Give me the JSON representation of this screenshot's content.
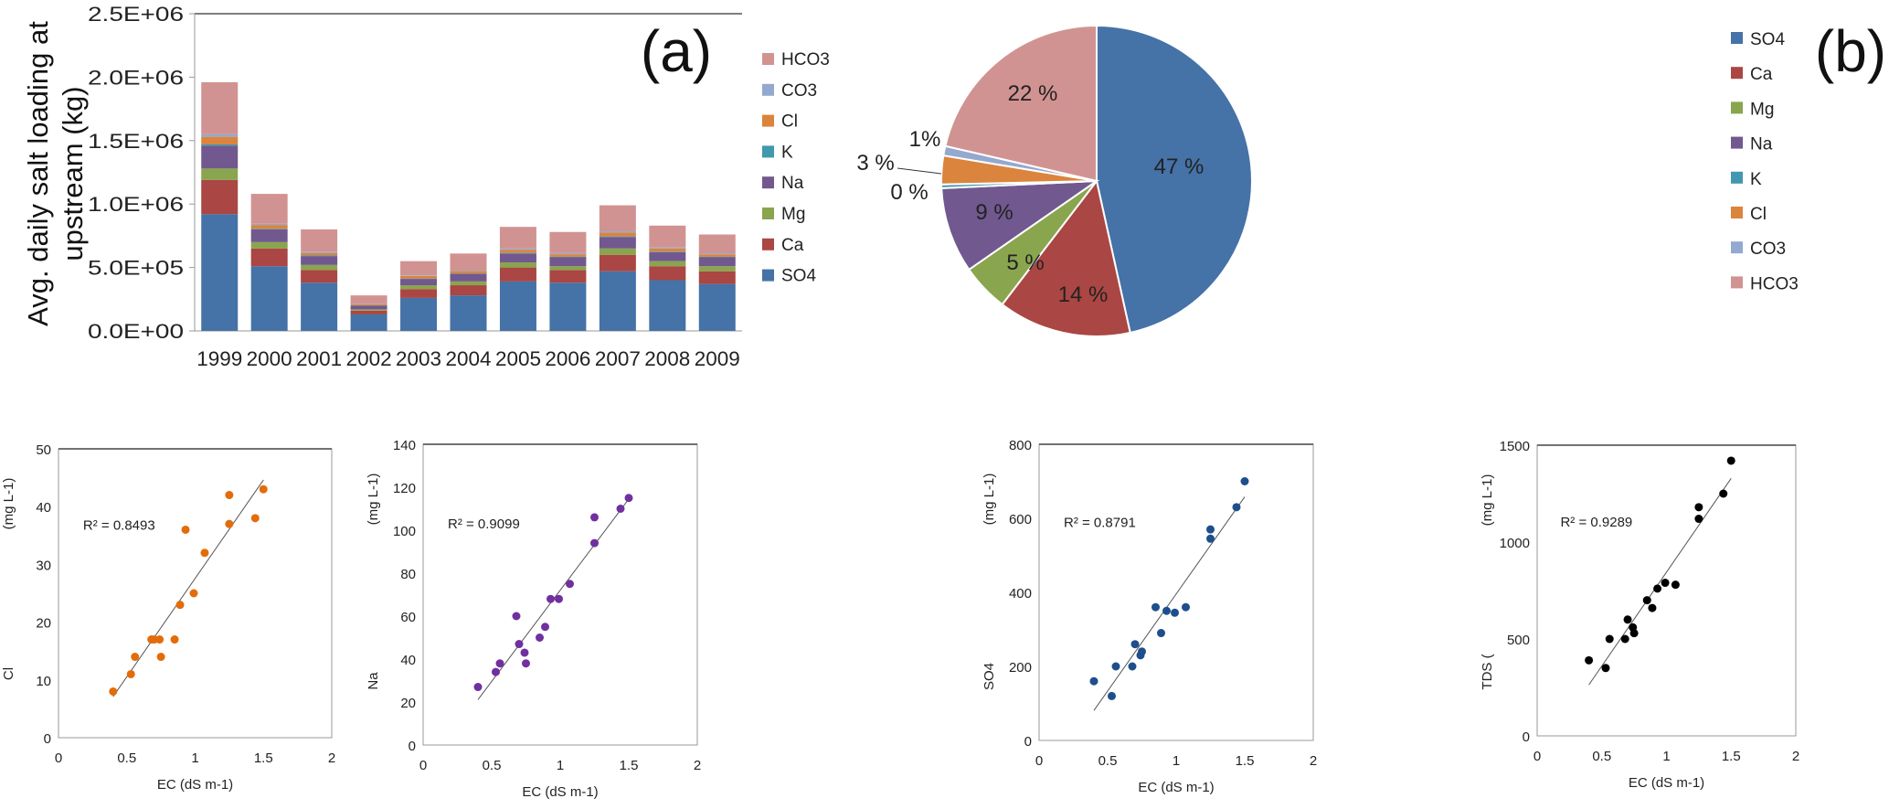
{
  "chart_data": [
    {
      "type": "bar",
      "stacked": true,
      "panel_label": "(a)",
      "ylabel": "Avg. daily salt loading at upstream (kg)",
      "xlabel": "",
      "ylim": [
        0,
        2500000
      ],
      "yticks": [
        "0.0E+00",
        "5.0E+05",
        "1.0E+06",
        "1.5E+06",
        "2.0E+06",
        "2.5E+06"
      ],
      "categories": [
        "1999",
        "2000",
        "2001",
        "2002",
        "2003",
        "2004",
        "2005",
        "2006",
        "2007",
        "2008",
        "2009"
      ],
      "legend_position": "right",
      "series": [
        {
          "name": "SO4",
          "color": "#4572a7",
          "values": [
            920000,
            510000,
            380000,
            130000,
            260000,
            280000,
            390000,
            380000,
            470000,
            400000,
            370000
          ]
        },
        {
          "name": "Ca",
          "color": "#aa4643",
          "values": [
            270000,
            140000,
            100000,
            30000,
            70000,
            80000,
            110000,
            100000,
            130000,
            110000,
            100000
          ]
        },
        {
          "name": "Mg",
          "color": "#89a54e",
          "values": [
            90000,
            50000,
            40000,
            10000,
            30000,
            30000,
            40000,
            30000,
            50000,
            40000,
            40000
          ]
        },
        {
          "name": "Na",
          "color": "#71588f",
          "values": [
            180000,
            100000,
            70000,
            30000,
            50000,
            60000,
            70000,
            70000,
            90000,
            70000,
            70000
          ]
        },
        {
          "name": "K",
          "color": "#4198af",
          "values": [
            10000,
            5000,
            5000,
            2000,
            3000,
            3000,
            5000,
            4000,
            5000,
            5000,
            4000
          ]
        },
        {
          "name": "Cl",
          "color": "#db843d",
          "values": [
            60000,
            30000,
            20000,
            10000,
            20000,
            20000,
            25000,
            20000,
            30000,
            25000,
            20000
          ]
        },
        {
          "name": "CO3",
          "color": "#93a9cf",
          "values": [
            20000,
            10000,
            10000,
            3000,
            5000,
            6000,
            10000,
            10000,
            10000,
            8000,
            8000
          ]
        },
        {
          "name": "HCO3",
          "color": "#d19392",
          "values": [
            410000,
            235000,
            175000,
            65000,
            112000,
            131000,
            170000,
            166000,
            205000,
            172000,
            148000
          ]
        }
      ]
    },
    {
      "type": "pie",
      "panel_label": "(b)",
      "legend_position": "right",
      "slices": [
        {
          "name": "SO4",
          "value": 47,
          "label": "47 %",
          "color": "#4572a7"
        },
        {
          "name": "Ca",
          "value": 14,
          "label": "14 %",
          "color": "#aa4643"
        },
        {
          "name": "Mg",
          "value": 5,
          "label": "5 %",
          "color": "#89a54e"
        },
        {
          "name": "Na",
          "value": 9,
          "label": "9 %",
          "color": "#71588f"
        },
        {
          "name": "K",
          "value": 0.4,
          "label": "0 %",
          "color": "#4198af"
        },
        {
          "name": "Cl",
          "value": 3,
          "label": "3 %",
          "color": "#db843d"
        },
        {
          "name": "CO3",
          "value": 1,
          "label": "1%",
          "color": "#93a9cf"
        },
        {
          "name": "HCO3",
          "value": 21.6,
          "label": "22 %",
          "color": "#d19392"
        }
      ]
    },
    {
      "type": "scatter",
      "ylabel_main": "Cl",
      "ylabel_unit": "(mg L-1)",
      "xlabel": "EC (dS m-1)",
      "xlim": [
        0,
        2
      ],
      "ylim": [
        0,
        50
      ],
      "xticks": [
        "0",
        "0.5",
        "1",
        "1.5",
        "2"
      ],
      "yticks": [
        "0",
        "10",
        "20",
        "30",
        "40",
        "50"
      ],
      "color": "#e36c0a",
      "r2": "R² = 0.8493",
      "trendline": "linear",
      "x": [
        0.4,
        0.53,
        0.56,
        0.68,
        0.7,
        0.74,
        0.75,
        0.85,
        0.89,
        0.93,
        0.99,
        1.07,
        1.25,
        1.25,
        1.44,
        1.5
      ],
      "y": [
        8,
        11,
        14,
        17,
        17,
        17,
        14,
        17,
        23,
        36,
        25,
        32,
        42,
        37,
        38,
        43
      ]
    },
    {
      "type": "scatter",
      "ylabel_main": "Na",
      "ylabel_unit": "(mg L-1)",
      "xlabel": "EC (dS m-1)",
      "xlim": [
        0,
        2
      ],
      "ylim": [
        0,
        140
      ],
      "xticks": [
        "0",
        "0.5",
        "1",
        "1.5",
        "2"
      ],
      "yticks": [
        "0",
        "20",
        "40",
        "60",
        "80",
        "100",
        "120",
        "140"
      ],
      "color": "#7030a0",
      "r2": "R² = 0.9099",
      "trendline": "linear",
      "x": [
        0.4,
        0.53,
        0.56,
        0.68,
        0.7,
        0.74,
        0.75,
        0.85,
        0.89,
        0.93,
        0.99,
        1.07,
        1.25,
        1.25,
        1.44,
        1.5
      ],
      "y": [
        27,
        34,
        38,
        60,
        47,
        43,
        38,
        50,
        55,
        68,
        68,
        75,
        106,
        94,
        110,
        115
      ]
    },
    {
      "type": "scatter",
      "ylabel_main": "SO4",
      "ylabel_unit": "(mg L-1)",
      "xlabel": "EC (dS m-1)",
      "xlim": [
        0,
        2
      ],
      "ylim": [
        0,
        800
      ],
      "xticks": [
        "0",
        "0.5",
        "1",
        "1.5",
        "2"
      ],
      "yticks": [
        "0",
        "200",
        "400",
        "600",
        "800"
      ],
      "color": "#1f4e8c",
      "r2": "R² = 0.8791",
      "trendline": "linear",
      "x": [
        0.4,
        0.53,
        0.56,
        0.68,
        0.7,
        0.74,
        0.75,
        0.85,
        0.89,
        0.93,
        0.99,
        1.07,
        1.25,
        1.25,
        1.44,
        1.5
      ],
      "y": [
        160,
        120,
        200,
        200,
        260,
        230,
        240,
        360,
        290,
        350,
        345,
        360,
        570,
        545,
        630,
        700
      ]
    },
    {
      "type": "scatter",
      "ylabel_main": "TDS (",
      "ylabel_unit": "(mg L-1)",
      "xlabel": "EC (dS m-1)",
      "xlim": [
        0,
        2
      ],
      "ylim": [
        0,
        1500
      ],
      "xticks": [
        "0",
        "0.5",
        "1",
        "1.5",
        "2"
      ],
      "yticks": [
        "0",
        "500",
        "1000",
        "1500"
      ],
      "color": "#000000",
      "r2": "R² = 0.9289",
      "trendline": "linear",
      "x": [
        0.4,
        0.53,
        0.56,
        0.68,
        0.7,
        0.74,
        0.75,
        0.85,
        0.89,
        0.93,
        0.99,
        1.07,
        1.25,
        1.25,
        1.44,
        1.5
      ],
      "y": [
        390,
        350,
        500,
        500,
        600,
        560,
        530,
        700,
        660,
        760,
        790,
        780,
        1180,
        1120,
        1250,
        1420
      ]
    }
  ]
}
